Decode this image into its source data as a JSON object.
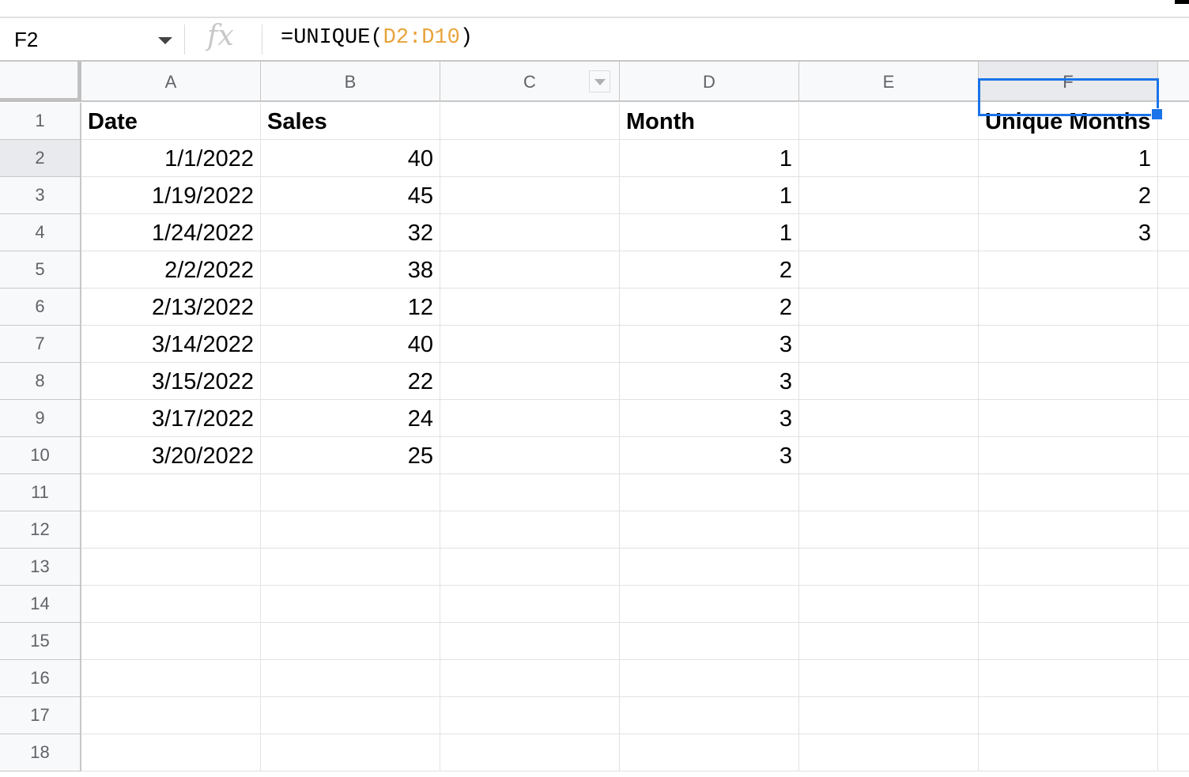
{
  "formula_bar": {
    "name_box": "F2",
    "fx_icon": "fx",
    "formula_prefix": "=UNIQUE(",
    "formula_ref": "D2:D10",
    "formula_suffix": ")"
  },
  "columns": [
    "A",
    "B",
    "C",
    "D",
    "E",
    "F"
  ],
  "selected_cell": "F2",
  "accent_color": "#1a73e8",
  "ref_color": "#e8a33a",
  "rows": [
    [
      "Date",
      "Sales",
      "",
      "Month",
      "",
      "Unique Months"
    ],
    [
      "1/1/2022",
      "40",
      "",
      "1",
      "",
      "1"
    ],
    [
      "1/19/2022",
      "45",
      "",
      "1",
      "",
      "2"
    ],
    [
      "1/24/2022",
      "32",
      "",
      "1",
      "",
      "3"
    ],
    [
      "2/2/2022",
      "38",
      "",
      "2",
      "",
      ""
    ],
    [
      "2/13/2022",
      "12",
      "",
      "2",
      "",
      ""
    ],
    [
      "3/14/2022",
      "40",
      "",
      "3",
      "",
      ""
    ],
    [
      "3/15/2022",
      "22",
      "",
      "3",
      "",
      ""
    ],
    [
      "3/17/2022",
      "24",
      "",
      "3",
      "",
      ""
    ],
    [
      "3/20/2022",
      "25",
      "",
      "3",
      "",
      ""
    ],
    [
      "",
      "",
      "",
      "",
      "",
      ""
    ],
    [
      "",
      "",
      "",
      "",
      "",
      ""
    ],
    [
      "",
      "",
      "",
      "",
      "",
      ""
    ],
    [
      "",
      "",
      "",
      "",
      "",
      ""
    ],
    [
      "",
      "",
      "",
      "",
      "",
      ""
    ],
    [
      "",
      "",
      "",
      "",
      "",
      ""
    ],
    [
      "",
      "",
      "",
      "",
      "",
      ""
    ],
    [
      "",
      "",
      "",
      "",
      "",
      ""
    ]
  ]
}
